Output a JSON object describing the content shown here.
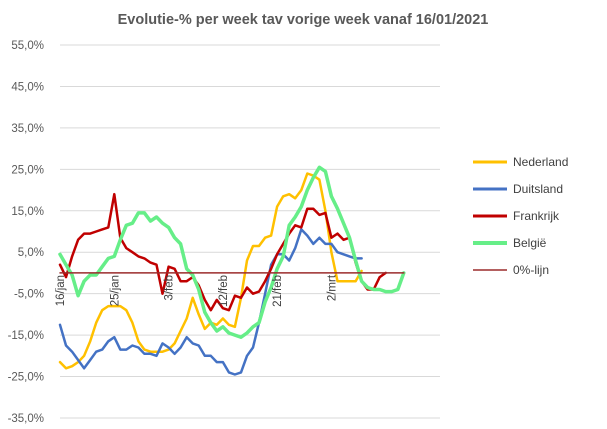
{
  "chart_data": {
    "type": "line",
    "title": "Evolutie-% per week tav vorige week vanaf 16/01/2021",
    "xlabel": "",
    "ylabel": "",
    "ylim": [
      -0.35,
      0.55
    ],
    "y_ticks": [
      "-35,0%",
      "-25,0%",
      "-15,0%",
      "-5,0%",
      "5,0%",
      "15,0%",
      "25,0%",
      "35,0%",
      "45,0%",
      "55,0%"
    ],
    "y_tick_values": [
      -0.35,
      -0.25,
      -0.15,
      -0.05,
      0.05,
      0.15,
      0.25,
      0.35,
      0.45,
      0.55
    ],
    "x_range": [
      0,
      63
    ],
    "x_ticks": [
      {
        "label": "16/jan",
        "x": 0
      },
      {
        "label": "25/jan",
        "x": 9
      },
      {
        "label": "3/feb",
        "x": 18
      },
      {
        "label": "12/feb",
        "x": 27
      },
      {
        "label": "21/feb",
        "x": 36
      },
      {
        "label": "2/mrt",
        "x": 45
      }
    ],
    "grid": true,
    "legend_position": "right",
    "series": [
      {
        "name": "Nederland",
        "color": "#FFC000",
        "points": [
          [
            0,
            -0.215
          ],
          [
            1,
            -0.23
          ],
          [
            2,
            -0.225
          ],
          [
            3,
            -0.215
          ],
          [
            4,
            -0.2
          ],
          [
            5,
            -0.165
          ],
          [
            6,
            -0.12
          ],
          [
            7,
            -0.09
          ],
          [
            8,
            -0.08
          ],
          [
            9,
            -0.08
          ],
          [
            10,
            -0.08
          ],
          [
            11,
            -0.09
          ],
          [
            12,
            -0.12
          ],
          [
            13,
            -0.165
          ],
          [
            14,
            -0.185
          ],
          [
            15,
            -0.19
          ],
          [
            16,
            -0.19
          ],
          [
            17,
            -0.19
          ],
          [
            18,
            -0.185
          ],
          [
            19,
            -0.17
          ],
          [
            20,
            -0.14
          ],
          [
            21,
            -0.11
          ],
          [
            22,
            -0.06
          ],
          [
            23,
            -0.1
          ],
          [
            24,
            -0.135
          ],
          [
            25,
            -0.12
          ],
          [
            26,
            -0.125
          ],
          [
            27,
            -0.11
          ],
          [
            28,
            -0.125
          ],
          [
            29,
            -0.13
          ],
          [
            30,
            -0.06
          ],
          [
            31,
            0.03
          ],
          [
            32,
            0.065
          ],
          [
            33,
            0.065
          ],
          [
            34,
            0.085
          ],
          [
            35,
            0.09
          ],
          [
            36,
            0.16
          ],
          [
            37,
            0.185
          ],
          [
            38,
            0.19
          ],
          [
            39,
            0.18
          ],
          [
            40,
            0.2
          ],
          [
            41,
            0.24
          ],
          [
            42,
            0.235
          ],
          [
            43,
            0.225
          ],
          [
            44,
            0.15
          ],
          [
            45,
            0.05
          ],
          [
            46,
            -0.02
          ],
          [
            47,
            -0.02
          ],
          [
            48,
            -0.02
          ],
          [
            49,
            -0.02
          ],
          [
            50,
            0.005
          ]
        ]
      },
      {
        "name": "Duitsland",
        "color": "#4472C4",
        "points": [
          [
            0,
            -0.125
          ],
          [
            1,
            -0.175
          ],
          [
            2,
            -0.19
          ],
          [
            3,
            -0.21
          ],
          [
            4,
            -0.23
          ],
          [
            5,
            -0.21
          ],
          [
            6,
            -0.19
          ],
          [
            7,
            -0.185
          ],
          [
            8,
            -0.165
          ],
          [
            9,
            -0.155
          ],
          [
            10,
            -0.185
          ],
          [
            11,
            -0.185
          ],
          [
            12,
            -0.175
          ],
          [
            13,
            -0.18
          ],
          [
            14,
            -0.195
          ],
          [
            15,
            -0.195
          ],
          [
            16,
            -0.2
          ],
          [
            17,
            -0.17
          ],
          [
            18,
            -0.18
          ],
          [
            19,
            -0.195
          ],
          [
            20,
            -0.18
          ],
          [
            21,
            -0.155
          ],
          [
            22,
            -0.17
          ],
          [
            23,
            -0.175
          ],
          [
            24,
            -0.2
          ],
          [
            25,
            -0.2
          ],
          [
            26,
            -0.215
          ],
          [
            27,
            -0.215
          ],
          [
            28,
            -0.24
          ],
          [
            29,
            -0.245
          ],
          [
            30,
            -0.24
          ],
          [
            31,
            -0.2
          ],
          [
            32,
            -0.18
          ],
          [
            33,
            -0.12
          ],
          [
            34,
            -0.05
          ],
          [
            35,
            0.02
          ],
          [
            36,
            0.045
          ],
          [
            37,
            0.045
          ],
          [
            38,
            0.03
          ],
          [
            39,
            0.06
          ],
          [
            40,
            0.105
          ],
          [
            41,
            0.09
          ],
          [
            42,
            0.07
          ],
          [
            43,
            0.085
          ],
          [
            44,
            0.07
          ],
          [
            45,
            0.07
          ],
          [
            46,
            0.05
          ],
          [
            47,
            0.045
          ],
          [
            48,
            0.04
          ],
          [
            49,
            0.035
          ],
          [
            50,
            0.035
          ]
        ]
      },
      {
        "name": "Frankrijk",
        "color": "#C00000",
        "points": [
          [
            0,
            0.02
          ],
          [
            1,
            -0.01
          ],
          [
            2,
            0.04
          ],
          [
            3,
            0.08
          ],
          [
            4,
            0.095
          ],
          [
            5,
            0.095
          ],
          [
            6,
            0.1
          ],
          [
            7,
            0.105
          ],
          [
            8,
            0.11
          ],
          [
            9,
            0.19
          ],
          [
            10,
            0.085
          ],
          [
            11,
            0.06
          ],
          [
            12,
            0.05
          ],
          [
            13,
            0.04
          ],
          [
            14,
            0.035
          ],
          [
            15,
            0.025
          ],
          [
            16,
            0.02
          ],
          [
            17,
            -0.05
          ],
          [
            18,
            0.015
          ],
          [
            19,
            0.01
          ],
          [
            20,
            -0.02
          ],
          [
            21,
            -0.02
          ],
          [
            22,
            -0.01
          ],
          [
            23,
            -0.03
          ],
          [
            24,
            -0.065
          ],
          [
            25,
            -0.09
          ],
          [
            26,
            -0.065
          ],
          [
            27,
            -0.085
          ],
          [
            28,
            -0.09
          ],
          [
            29,
            -0.055
          ],
          [
            30,
            -0.06
          ],
          [
            31,
            -0.035
          ],
          [
            32,
            -0.05
          ],
          [
            33,
            -0.045
          ],
          [
            34,
            -0.02
          ],
          [
            35,
            0.01
          ],
          [
            36,
            0.045
          ],
          [
            37,
            0.07
          ],
          [
            38,
            0.095
          ],
          [
            39,
            0.115
          ],
          [
            40,
            0.11
          ],
          [
            41,
            0.155
          ],
          [
            42,
            0.155
          ],
          [
            43,
            0.14
          ],
          [
            44,
            0.145
          ],
          [
            45,
            0.085
          ],
          [
            46,
            0.095
          ],
          [
            47,
            0.08
          ],
          [
            48,
            0.085
          ],
          [
            49,
            0.025
          ],
          [
            50,
            -0.02
          ],
          [
            51,
            -0.04
          ],
          [
            52,
            -0.04
          ],
          [
            53,
            -0.01
          ],
          [
            54,
            0.0
          ]
        ]
      },
      {
        "name": "België",
        "color": "#66EE88",
        "points": [
          [
            0,
            0.045
          ],
          [
            1,
            0.02
          ],
          [
            2,
            -0.005
          ],
          [
            3,
            -0.055
          ],
          [
            4,
            -0.02
          ],
          [
            5,
            -0.005
          ],
          [
            6,
            -0.005
          ],
          [
            7,
            0.015
          ],
          [
            8,
            0.035
          ],
          [
            9,
            0.04
          ],
          [
            10,
            0.08
          ],
          [
            11,
            0.115
          ],
          [
            12,
            0.12
          ],
          [
            13,
            0.145
          ],
          [
            14,
            0.145
          ],
          [
            15,
            0.125
          ],
          [
            16,
            0.135
          ],
          [
            17,
            0.12
          ],
          [
            18,
            0.11
          ],
          [
            19,
            0.085
          ],
          [
            20,
            0.07
          ],
          [
            21,
            0.01
          ],
          [
            22,
            -0.005
          ],
          [
            23,
            -0.04
          ],
          [
            24,
            -0.095
          ],
          [
            25,
            -0.12
          ],
          [
            26,
            -0.14
          ],
          [
            27,
            -0.13
          ],
          [
            28,
            -0.145
          ],
          [
            29,
            -0.15
          ],
          [
            30,
            -0.155
          ],
          [
            31,
            -0.145
          ],
          [
            32,
            -0.13
          ],
          [
            33,
            -0.12
          ],
          [
            34,
            -0.07
          ],
          [
            35,
            -0.035
          ],
          [
            36,
            0.01
          ],
          [
            37,
            0.04
          ],
          [
            38,
            0.115
          ],
          [
            39,
            0.135
          ],
          [
            40,
            0.16
          ],
          [
            41,
            0.2
          ],
          [
            42,
            0.23
          ],
          [
            43,
            0.255
          ],
          [
            44,
            0.245
          ],
          [
            45,
            0.185
          ],
          [
            46,
            0.155
          ],
          [
            47,
            0.12
          ],
          [
            48,
            0.085
          ],
          [
            49,
            0.03
          ],
          [
            50,
            -0.02
          ],
          [
            51,
            -0.035
          ],
          [
            52,
            -0.04
          ],
          [
            53,
            -0.04
          ],
          [
            54,
            -0.045
          ],
          [
            55,
            -0.045
          ],
          [
            56,
            -0.04
          ],
          [
            57,
            0.0
          ]
        ]
      },
      {
        "name": "0%-lijn",
        "color": "#9B2C2C",
        "points": [
          [
            0,
            0.0
          ],
          [
            57,
            0.0
          ]
        ]
      }
    ]
  }
}
